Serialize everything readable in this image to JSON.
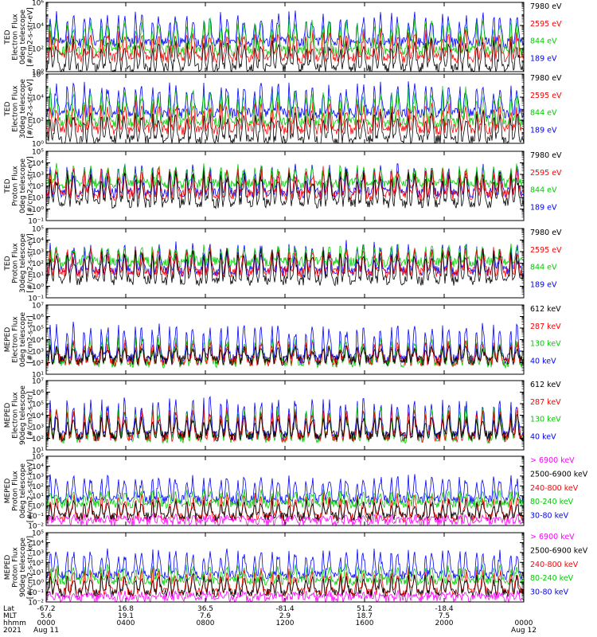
{
  "chart_data": {
    "type": "line",
    "x_axis": {
      "rows": [
        {
          "label": "Lat",
          "ticks": [
            "-67.2",
            "16.8",
            "36.5",
            "-81.4",
            "51.2",
            "-18.4",
            ""
          ]
        },
        {
          "label": "MLT",
          "ticks": [
            "5.6",
            "19.1",
            "7.6",
            "2.9",
            "18.7",
            "7.5",
            ""
          ]
        },
        {
          "label": "hhmm",
          "ticks": [
            "0000",
            "0400",
            "0800",
            "1200",
            "1600",
            "2000",
            "0000"
          ]
        },
        {
          "label": "2021",
          "ticks": [
            "Aug 11",
            "",
            "",
            "",
            "",
            "",
            "Aug 12"
          ]
        }
      ],
      "hours": [
        0,
        4,
        8,
        12,
        16,
        20,
        24
      ]
    },
    "panels": [
      {
        "ylabel": [
          "TED",
          "Electron Flux",
          "0deg telescope",
          "[#/cm2-s-str-eV]"
        ],
        "ylim_exp": [
          0,
          6
        ],
        "major_exps": [
          0,
          2,
          4,
          6
        ],
        "tick_labels": [
          "10⁰",
          "10²",
          "10⁴",
          "10⁶"
        ],
        "series": [
          {
            "name": "7980 eV",
            "color": "#000000",
            "base_exp": 0.3,
            "spike_exp": 2.8
          },
          {
            "name": "2595 eV",
            "color": "#ff0000",
            "base_exp": 1.2,
            "spike_exp": 3.6
          },
          {
            "name": "844 eV",
            "color": "#00cc00",
            "base_exp": 1.8,
            "spike_exp": 4.6
          },
          {
            "name": "189 eV",
            "color": "#0000ff",
            "base_exp": 2.5,
            "spike_exp": 5.2
          }
        ]
      },
      {
        "ylabel": [
          "TED",
          "Electron Flux",
          "30deg telescope",
          "[#/cm2-s-str-eV]"
        ],
        "ylim_exp": [
          0,
          6
        ],
        "major_exps": [
          0,
          2,
          4,
          6
        ],
        "tick_labels": [
          "10⁰",
          "10²",
          "10⁴",
          "10⁶"
        ],
        "series": [
          {
            "name": "7980 eV",
            "color": "#000000",
            "base_exp": 0.3,
            "spike_exp": 2.8
          },
          {
            "name": "2595 eV",
            "color": "#ff0000",
            "base_exp": 1.2,
            "spike_exp": 3.6
          },
          {
            "name": "844 eV",
            "color": "#00cc00",
            "base_exp": 1.8,
            "spike_exp": 4.8
          },
          {
            "name": "189 eV",
            "color": "#0000ff",
            "base_exp": 2.6,
            "spike_exp": 5.3
          }
        ]
      },
      {
        "ylabel": [
          "TED",
          "Proton Flux",
          "0deg telescope",
          "[#/cm2-s-str-eV]"
        ],
        "ylim_exp": [
          -1,
          5
        ],
        "major_exps": [
          -1,
          0,
          1,
          2,
          3,
          4,
          5
        ],
        "tick_labels": [
          "10⁻¹",
          "10⁰",
          "10¹",
          "10²",
          "10³",
          "10⁴",
          "10⁵"
        ],
        "series": [
          {
            "name": "7980 eV",
            "color": "#000000",
            "base_exp": 0.5,
            "spike_exp": 3.4
          },
          {
            "name": "2595 eV",
            "color": "#ff0000",
            "base_exp": 1.2,
            "spike_exp": 3.6
          },
          {
            "name": "844 eV",
            "color": "#00cc00",
            "base_exp": 2.2,
            "spike_exp": 3.8
          },
          {
            "name": "189 eV",
            "color": "#0000ff",
            "base_exp": 1.4,
            "spike_exp": 4.0
          }
        ]
      },
      {
        "ylabel": [
          "TED",
          "Proton Flux",
          "30deg telescope",
          "[#/cm2-s-str-eV]"
        ],
        "ylim_exp": [
          -1,
          5
        ],
        "major_exps": [
          -1,
          0,
          1,
          2,
          3,
          4,
          5
        ],
        "tick_labels": [
          "10⁻¹",
          "10⁰",
          "10¹",
          "10²",
          "10³",
          "10⁴",
          "10⁵"
        ],
        "series": [
          {
            "name": "7980 eV",
            "color": "#000000",
            "base_exp": 0.5,
            "spike_exp": 3.2
          },
          {
            "name": "2595 eV",
            "color": "#ff0000",
            "base_exp": 1.2,
            "spike_exp": 3.4
          },
          {
            "name": "844 eV",
            "color": "#00cc00",
            "base_exp": 2.1,
            "spike_exp": 3.6
          },
          {
            "name": "189 eV",
            "color": "#0000ff",
            "base_exp": 1.3,
            "spike_exp": 3.8
          }
        ]
      },
      {
        "ylabel": [
          "MEPED",
          "Electron Flux",
          "0deg telescope",
          "[#/cm2-s-str]"
        ],
        "ylim_exp": [
          1,
          7
        ],
        "major_exps": [
          1,
          2,
          3,
          4,
          5,
          6,
          7
        ],
        "tick_labels": [
          "10¹",
          "10²",
          "10³",
          "10⁴",
          "10⁵",
          "10⁶",
          "10⁷"
        ],
        "series": [
          {
            "name": "612 keV",
            "color": "#000000",
            "base_exp": 2.2,
            "spike_exp": 3.5
          },
          {
            "name": "287 keV",
            "color": "#ff0000",
            "base_exp": 2.1,
            "spike_exp": 3.9
          },
          {
            "name": "130 keV",
            "color": "#00cc00",
            "base_exp": 2.0,
            "spike_exp": 4.2
          },
          {
            "name": "40 keV",
            "color": "#0000ff",
            "base_exp": 2.3,
            "spike_exp": 5.6
          }
        ]
      },
      {
        "ylabel": [
          "MEPED",
          "Electron Flux",
          "90deg telescope",
          "[#/cm2-s-str]"
        ],
        "ylim_exp": [
          1,
          7
        ],
        "major_exps": [
          1,
          2,
          3,
          4,
          5,
          6,
          7
        ],
        "tick_labels": [
          "10¹",
          "10²",
          "10³",
          "10⁴",
          "10⁵",
          "10⁶",
          "10⁷"
        ],
        "series": [
          {
            "name": "612 keV",
            "color": "#000000",
            "base_exp": 2.2,
            "spike_exp": 4.0
          },
          {
            "name": "287 keV",
            "color": "#ff0000",
            "base_exp": 2.1,
            "spike_exp": 4.6
          },
          {
            "name": "130 keV",
            "color": "#00cc00",
            "base_exp": 2.0,
            "spike_exp": 4.8
          },
          {
            "name": "40 keV",
            "color": "#0000ff",
            "base_exp": 2.3,
            "spike_exp": 5.6
          }
        ]
      },
      {
        "ylabel": [
          "MEPED",
          "Proton Flux",
          "0deg telescope",
          "[#/cm2-s-str-keV]"
        ],
        "ylim_exp": [
          -2,
          5
        ],
        "major_exps": [
          -2,
          -1,
          0,
          1,
          2,
          3,
          4,
          5
        ],
        "tick_labels": [
          "10⁻²",
          "10⁻¹",
          "10⁰",
          "10¹",
          "10²",
          "10³",
          "10⁴",
          "10⁵"
        ],
        "series": [
          {
            "name": "> 6900 keV",
            "color": "#ff00ff",
            "base_exp": -1.6,
            "spike_exp": -1.0
          },
          {
            "name": "2500-6900 keV",
            "color": "#000000",
            "base_exp": -1.1,
            "spike_exp": 0.6
          },
          {
            "name": "240-800 keV",
            "color": "#ff0000",
            "base_exp": -1.2,
            "spike_exp": 1.2
          },
          {
            "name": "80-240 keV",
            "color": "#00cc00",
            "base_exp": 0.2,
            "spike_exp": 1.6
          },
          {
            "name": "30-80 keV",
            "color": "#0000ff",
            "base_exp": 0.6,
            "spike_exp": 3.2
          }
        ]
      },
      {
        "ylabel": [
          "MEPED",
          "Proton Flux",
          "90deg telescope",
          "[#/cm2-s-str-keV]"
        ],
        "ylim_exp": [
          -2,
          5
        ],
        "major_exps": [
          -2,
          -1,
          0,
          1,
          2,
          3,
          4,
          5
        ],
        "tick_labels": [
          "10⁻²",
          "10⁻¹",
          "10⁰",
          "10¹",
          "10²",
          "10³",
          "10⁴",
          "10⁵"
        ],
        "series": [
          {
            "name": "> 6900 keV",
            "color": "#ff00ff",
            "base_exp": -1.6,
            "spike_exp": -1.0
          },
          {
            "name": "2500-6900 keV",
            "color": "#000000",
            "base_exp": -1.1,
            "spike_exp": 0.8
          },
          {
            "name": "240-800 keV",
            "color": "#ff0000",
            "base_exp": -1.0,
            "spike_exp": 1.4
          },
          {
            "name": "80-240 keV",
            "color": "#00cc00",
            "base_exp": 0.1,
            "spike_exp": 1.8
          },
          {
            "name": "30-80 keV",
            "color": "#0000ff",
            "base_exp": 0.7,
            "spike_exp": 3.4
          }
        ]
      }
    ],
    "passes_per_day": 14
  }
}
